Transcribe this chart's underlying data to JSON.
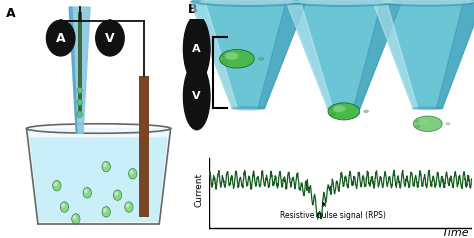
{
  "fig_width": 4.74,
  "fig_height": 2.38,
  "dpi": 100,
  "bg_color": "#ffffff",
  "cone_color_light": "#a8dde8",
  "cone_color_mid": "#6cc5d5",
  "cone_color_dark": "#3a9ab5",
  "cone_color_side": "#5ab8cc",
  "ball_green_dark": "#2a8a3a",
  "ball_green_mid": "#4ab84a",
  "ball_green_light": "#8ad88a",
  "ball_outline": "#1a6a2a",
  "beaker_water_light": "#c8eef8",
  "beaker_water_dark": "#90d0e8",
  "beaker_rim": "#888888",
  "electrode_green": "#3d6b3d",
  "electrode_brown": "#7a4525",
  "electrode_blue_light": "#88c8e0",
  "electrode_blue_dark": "#4898c0",
  "wire_color": "#111111",
  "instrument_bg": "#111111",
  "instrument_text": "#ffffff",
  "signal_color": "#145c1e",
  "time_label": "Time",
  "current_label": "Current",
  "rps_label": "Resistive pulse signal (RPS)"
}
